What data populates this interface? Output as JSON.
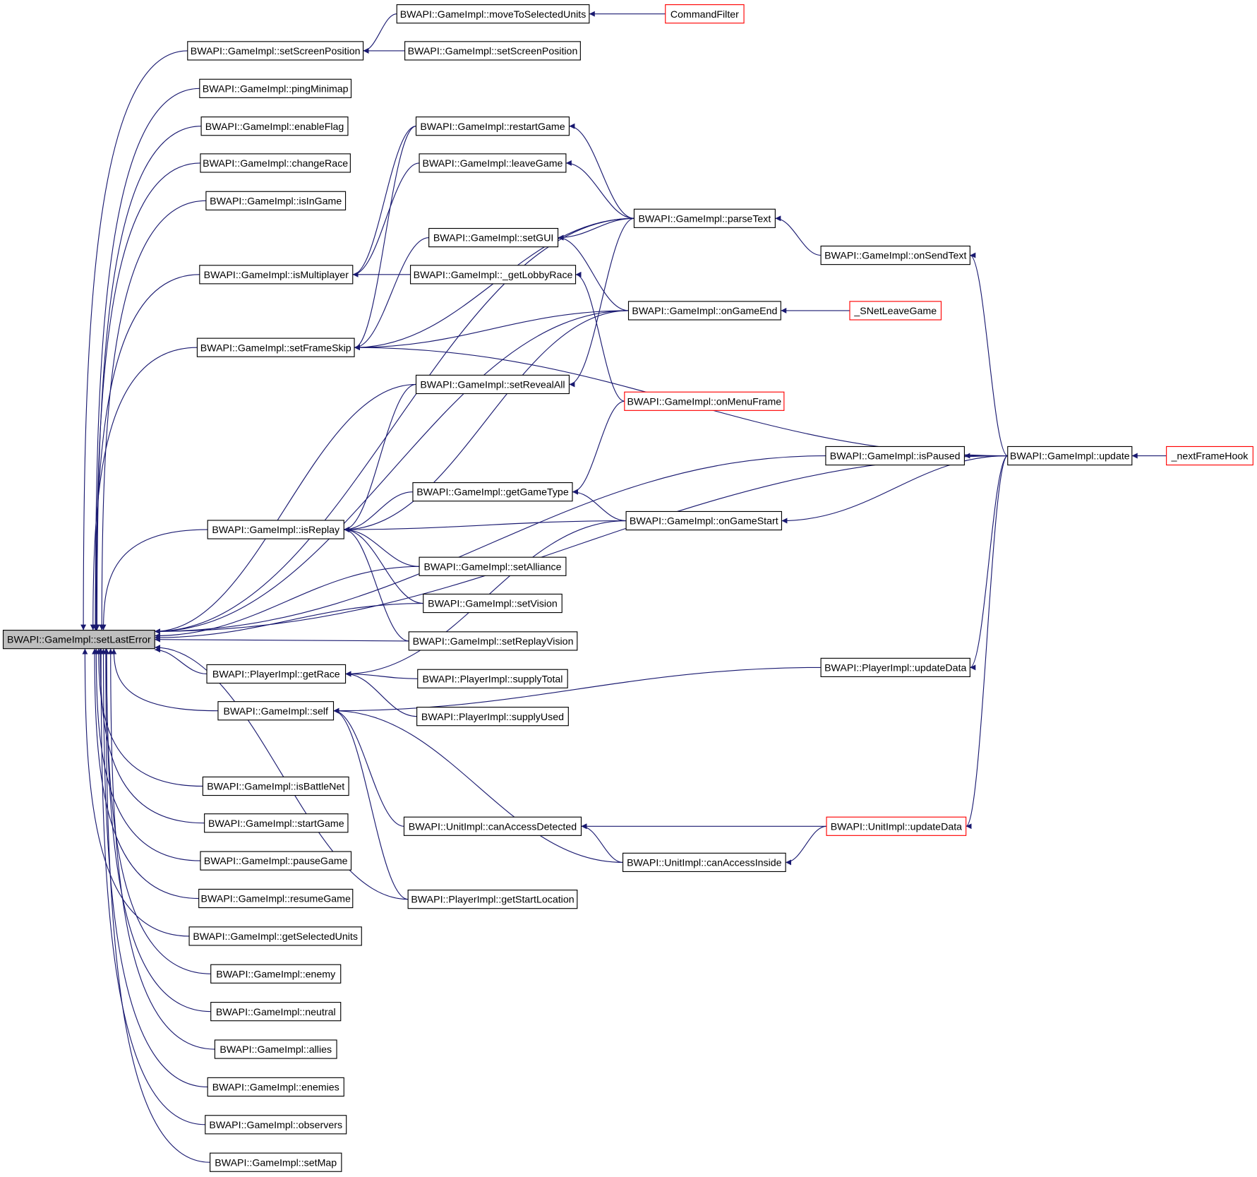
{
  "graph": {
    "edge_color": "#191970",
    "root_fill": "#bfbfbf",
    "link_border": "#000000",
    "external_border": "#ff0000",
    "nodes": [
      {
        "label": "BWAPI::GameImpl::setLastError",
        "kind": "root"
      },
      {
        "label": "BWAPI::GameImpl::setScreenPosition",
        "kind": "normal"
      },
      {
        "label": "BWAPI::GameImpl::pingMinimap",
        "kind": "normal"
      },
      {
        "label": "BWAPI::GameImpl::enableFlag",
        "kind": "normal"
      },
      {
        "label": "BWAPI::GameImpl::changeRace",
        "kind": "normal"
      },
      {
        "label": "BWAPI::GameImpl::isInGame",
        "kind": "normal"
      },
      {
        "label": "BWAPI::GameImpl::isMultiplayer",
        "kind": "normal"
      },
      {
        "label": "BWAPI::GameImpl::setFrameSkip",
        "kind": "normal"
      },
      {
        "label": "BWAPI::GameImpl::isReplay",
        "kind": "normal"
      },
      {
        "label": "BWAPI::PlayerImpl::getRace",
        "kind": "normal"
      },
      {
        "label": "BWAPI::GameImpl::self",
        "kind": "normal"
      },
      {
        "label": "BWAPI::GameImpl::isBattleNet",
        "kind": "normal"
      },
      {
        "label": "BWAPI::GameImpl::startGame",
        "kind": "normal"
      },
      {
        "label": "BWAPI::GameImpl::pauseGame",
        "kind": "normal"
      },
      {
        "label": "BWAPI::GameImpl::resumeGame",
        "kind": "normal"
      },
      {
        "label": "BWAPI::GameImpl::getSelectedUnits",
        "kind": "normal"
      },
      {
        "label": "BWAPI::GameImpl::enemy",
        "kind": "normal"
      },
      {
        "label": "BWAPI::GameImpl::neutral",
        "kind": "normal"
      },
      {
        "label": "BWAPI::GameImpl::allies",
        "kind": "normal"
      },
      {
        "label": "BWAPI::GameImpl::enemies",
        "kind": "normal"
      },
      {
        "label": "BWAPI::GameImpl::observers",
        "kind": "normal"
      },
      {
        "label": "BWAPI::GameImpl::setMap",
        "kind": "normal"
      },
      {
        "label": "BWAPI::GameImpl::moveToSelectedUnits",
        "kind": "normal"
      },
      {
        "label": "BWAPI::GameImpl::setScreenPosition",
        "kind": "normal"
      },
      {
        "label": "BWAPI::GameImpl::restartGame",
        "kind": "normal"
      },
      {
        "label": "BWAPI::GameImpl::leaveGame",
        "kind": "normal"
      },
      {
        "label": "BWAPI::GameImpl::setGUI",
        "kind": "normal"
      },
      {
        "label": "BWAPI::GameImpl::_getLobbyRace",
        "kind": "normal"
      },
      {
        "label": "BWAPI::GameImpl::setRevealAll",
        "kind": "normal"
      },
      {
        "label": "BWAPI::GameImpl::getGameType",
        "kind": "normal"
      },
      {
        "label": "BWAPI::GameImpl::setAlliance",
        "kind": "normal"
      },
      {
        "label": "BWAPI::GameImpl::setVision",
        "kind": "normal"
      },
      {
        "label": "BWAPI::GameImpl::setReplayVision",
        "kind": "normal"
      },
      {
        "label": "BWAPI::PlayerImpl::supplyTotal",
        "kind": "normal"
      },
      {
        "label": "BWAPI::PlayerImpl::supplyUsed",
        "kind": "normal"
      },
      {
        "label": "BWAPI::UnitImpl::canAccessDetected",
        "kind": "normal"
      },
      {
        "label": "BWAPI::PlayerImpl::getStartLocation",
        "kind": "normal"
      },
      {
        "label": "CommandFilter",
        "kind": "external"
      },
      {
        "label": "BWAPI::GameImpl::parseText",
        "kind": "normal"
      },
      {
        "label": "BWAPI::GameImpl::onGameEnd",
        "kind": "normal"
      },
      {
        "label": "BWAPI::GameImpl::onMenuFrame",
        "kind": "external"
      },
      {
        "label": "BWAPI::GameImpl::onGameStart",
        "kind": "normal"
      },
      {
        "label": "BWAPI::UnitImpl::canAccessInside",
        "kind": "normal"
      },
      {
        "label": "BWAPI::GameImpl::onSendText",
        "kind": "normal"
      },
      {
        "label": "_SNetLeaveGame",
        "kind": "external"
      },
      {
        "label": "BWAPI::GameImpl::isPaused",
        "kind": "normal"
      },
      {
        "label": "BWAPI::PlayerImpl::updateData",
        "kind": "normal"
      },
      {
        "label": "BWAPI::UnitImpl::updateData",
        "kind": "external"
      },
      {
        "label": "BWAPI::GameImpl::update",
        "kind": "normal"
      },
      {
        "label": "_nextFrameHook",
        "kind": "external"
      }
    ],
    "edges": [
      [
        1,
        0
      ],
      [
        2,
        0
      ],
      [
        3,
        0
      ],
      [
        4,
        0
      ],
      [
        5,
        0
      ],
      [
        6,
        0
      ],
      [
        7,
        0
      ],
      [
        8,
        0
      ],
      [
        9,
        0
      ],
      [
        10,
        0
      ],
      [
        11,
        0
      ],
      [
        12,
        0
      ],
      [
        13,
        0
      ],
      [
        14,
        0
      ],
      [
        15,
        0
      ],
      [
        16,
        0
      ],
      [
        17,
        0
      ],
      [
        18,
        0
      ],
      [
        19,
        0
      ],
      [
        20,
        0
      ],
      [
        21,
        0
      ],
      [
        48,
        0
      ],
      [
        38,
        0
      ],
      [
        39,
        0
      ],
      [
        28,
        0
      ],
      [
        45,
        0
      ],
      [
        30,
        0
      ],
      [
        31,
        0
      ],
      [
        32,
        0
      ],
      [
        36,
        0
      ],
      [
        22,
        1
      ],
      [
        23,
        1
      ],
      [
        37,
        22
      ],
      [
        24,
        6
      ],
      [
        25,
        6
      ],
      [
        27,
        6
      ],
      [
        26,
        7
      ],
      [
        24,
        7
      ],
      [
        38,
        7
      ],
      [
        39,
        7
      ],
      [
        48,
        7
      ],
      [
        28,
        8
      ],
      [
        39,
        8
      ],
      [
        29,
        8
      ],
      [
        41,
        8
      ],
      [
        30,
        8
      ],
      [
        31,
        8
      ],
      [
        32,
        8
      ],
      [
        33,
        9
      ],
      [
        34,
        9
      ],
      [
        41,
        9
      ],
      [
        35,
        10
      ],
      [
        36,
        10
      ],
      [
        42,
        10
      ],
      [
        46,
        10
      ],
      [
        38,
        24
      ],
      [
        38,
        25
      ],
      [
        38,
        26
      ],
      [
        39,
        26
      ],
      [
        40,
        27
      ],
      [
        38,
        28
      ],
      [
        40,
        29
      ],
      [
        41,
        29
      ],
      [
        43,
        38
      ],
      [
        48,
        43
      ],
      [
        44,
        39
      ],
      [
        48,
        45
      ],
      [
        48,
        41
      ],
      [
        47,
        35
      ],
      [
        42,
        35
      ],
      [
        47,
        42
      ],
      [
        48,
        46
      ],
      [
        48,
        47
      ],
      [
        49,
        48
      ]
    ]
  }
}
